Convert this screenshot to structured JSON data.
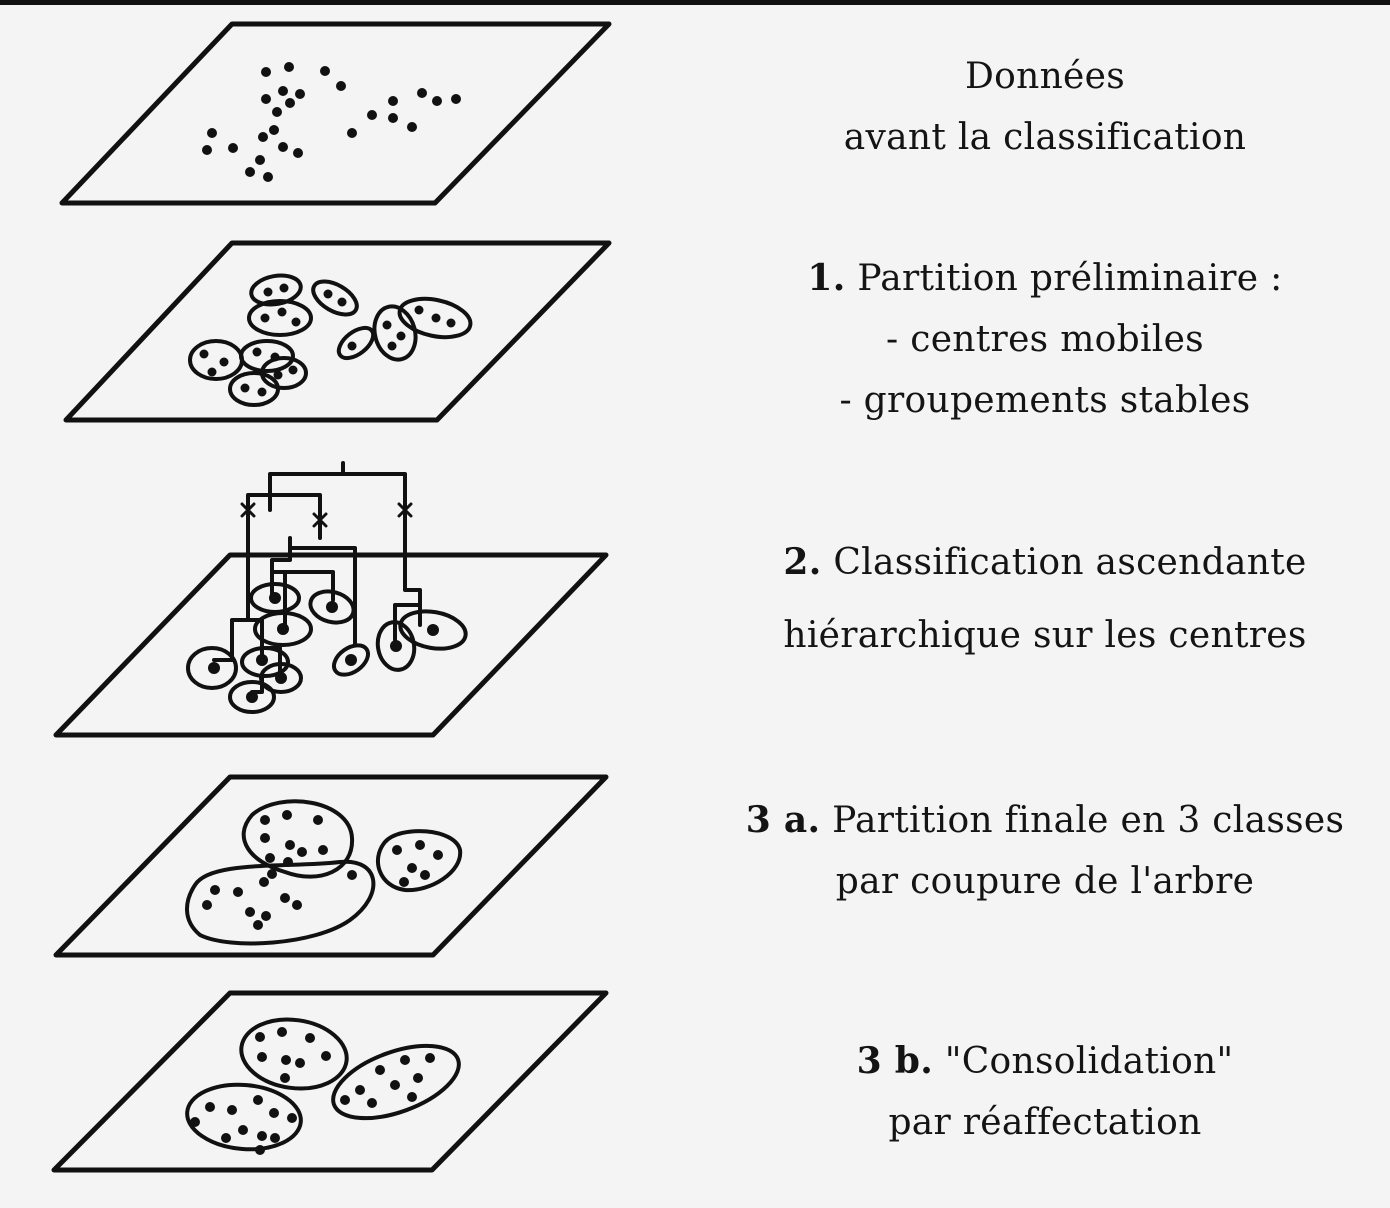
{
  "steps": [
    {
      "lines": [
        {
          "num": "",
          "text": "Données"
        },
        {
          "num": "",
          "text": "avant la classification"
        }
      ]
    },
    {
      "lines": [
        {
          "num": "1.",
          "text": " Partition préliminaire :"
        },
        {
          "num": "",
          "text": "- centres mobiles"
        },
        {
          "num": "",
          "text": "- groupements stables"
        }
      ]
    },
    {
      "lines": [
        {
          "num": "2.",
          "text": " Classification ascendante"
        },
        {
          "num": "",
          "text": "hiérarchique sur les centres"
        }
      ]
    },
    {
      "lines": [
        {
          "num": "3 a.",
          "text": " Partition finale en 3 classes"
        },
        {
          "num": "",
          "text": "par coupure de l'arbre"
        }
      ]
    },
    {
      "lines": [
        {
          "num": "3 b.",
          "text": " \"Consolidation\""
        },
        {
          "num": "",
          "text": "par réaffectation"
        }
      ]
    }
  ],
  "colors": {
    "ink": "#111111",
    "background": "#f4f4f4"
  }
}
